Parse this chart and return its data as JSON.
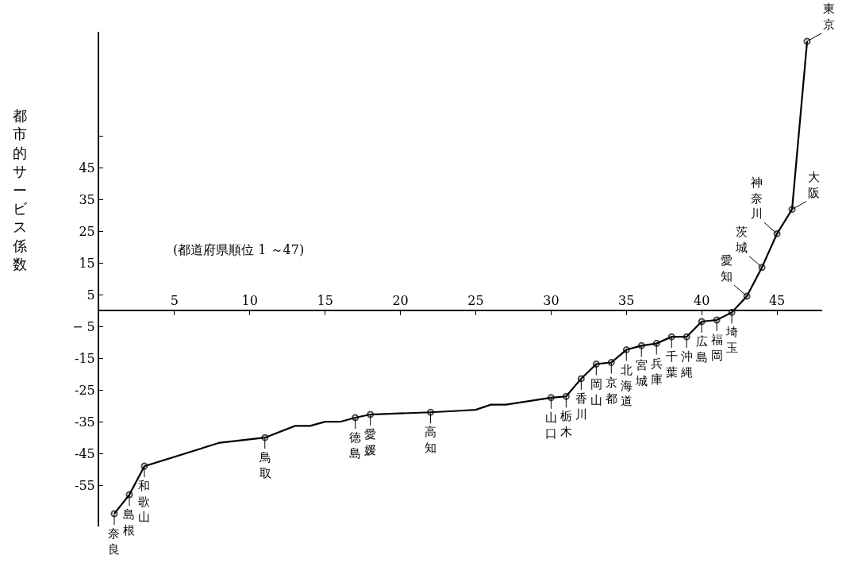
{
  "chart_data": {
    "type": "line",
    "ylabel": "都市的サービス係数",
    "annotations": [
      "(都道府県順位 1 ～47)"
    ],
    "x": [
      1,
      2,
      3,
      8,
      11,
      13,
      14,
      15,
      16,
      17,
      18,
      22,
      24,
      25,
      26,
      27,
      30,
      31,
      32,
      33,
      34,
      35,
      36,
      37,
      38,
      39,
      40,
      41,
      42,
      43,
      44,
      45,
      46,
      47
    ],
    "values": [
      -64,
      -58,
      -49,
      -41.6,
      -40,
      -36.3,
      -36.3,
      -35,
      -35,
      -33.7,
      -32.7,
      -32,
      -31.5,
      -31.2,
      -29.6,
      -29.6,
      -27.4,
      -27,
      -21.4,
      -16.8,
      -16.3,
      -12.3,
      -11,
      -10.3,
      -8.2,
      -8.2,
      -3.4,
      -2.9,
      -0.5,
      4.6,
      13.7,
      24.3,
      32,
      85
    ],
    "value_labels": [
      "奈良",
      "島根",
      "和歌山",
      null,
      "鳥取",
      null,
      null,
      null,
      null,
      "徳島",
      "愛媛",
      "高知",
      null,
      null,
      null,
      null,
      "山口",
      "栃木",
      "香川",
      "岡山",
      "京都",
      "北海道",
      "宮城",
      "兵庫",
      "千葉",
      "沖縄",
      "広島",
      "福岡",
      "埼玉",
      "愛知",
      "茨城",
      "神奈川",
      "大阪",
      "東京"
    ],
    "color": "#000000",
    "marker": "circle",
    "line_style": "solid",
    "legend": false,
    "xlim": [
      0,
      48
    ],
    "xticks": [
      5,
      10,
      15,
      20,
      25,
      30,
      35,
      40,
      45
    ],
    "ylim": [
      -68,
      88
    ],
    "yticks": [
      {
        "value": 55,
        "label": null
      },
      45,
      35,
      25,
      15,
      5,
      {
        "value": -5,
        "label": "− 5"
      },
      -15,
      -25,
      -35,
      -45,
      -55
    ]
  }
}
